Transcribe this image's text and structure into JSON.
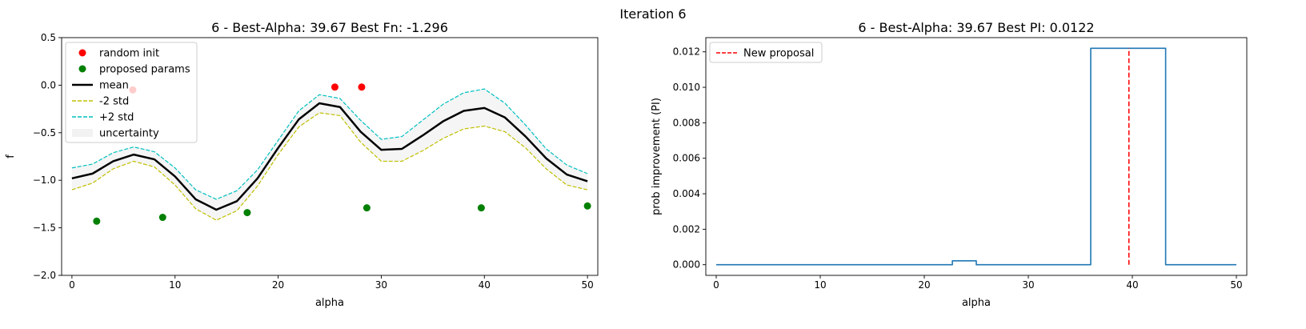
{
  "suptitle": "Iteration 6",
  "chart_data": [
    {
      "type": "line",
      "title": "6 - Best-Alpha: 39.67 Best Fn: -1.296",
      "xlabel": "alpha",
      "ylabel": "f",
      "xlim": [
        -1,
        51
      ],
      "ylim": [
        -2.0,
        0.5
      ],
      "xticks": [
        0,
        10,
        20,
        30,
        40,
        50
      ],
      "yticks": [
        -2.0,
        -1.5,
        -1.0,
        -0.5,
        0.0,
        0.5
      ],
      "ytick_labels": [
        "−2.0",
        "−1.5",
        "−1.0",
        "−0.5",
        "0.0",
        "0.5"
      ],
      "grid": false,
      "legend_position": "upper-left",
      "legend": [
        {
          "label": "random init",
          "kind": "marker",
          "color": "#ff0000"
        },
        {
          "label": "proposed params",
          "kind": "marker",
          "color": "#008000"
        },
        {
          "label": "mean",
          "kind": "line",
          "color": "#000000"
        },
        {
          "label": "-2 std",
          "kind": "dashed",
          "color": "#bfbf00"
        },
        {
          "label": "+2 std",
          "kind": "dashed",
          "color": "#00bfbf"
        },
        {
          "label": "uncertainty",
          "kind": "patch",
          "color": "#f2f2f2"
        }
      ],
      "series": [
        {
          "name": "mean",
          "color": "#000000",
          "x": [
            0,
            2,
            4,
            6,
            8,
            10,
            12,
            14,
            16,
            18,
            20,
            22,
            24,
            26,
            28,
            30,
            32,
            34,
            36,
            38,
            40,
            42,
            44,
            46,
            48,
            50
          ],
          "y": [
            -0.98,
            -0.93,
            -0.8,
            -0.73,
            -0.78,
            -0.96,
            -1.2,
            -1.31,
            -1.22,
            -0.98,
            -0.66,
            -0.36,
            -0.19,
            -0.23,
            -0.49,
            -0.68,
            -0.67,
            -0.53,
            -0.38,
            -0.27,
            -0.24,
            -0.34,
            -0.54,
            -0.77,
            -0.94,
            -1.01
          ]
        },
        {
          "name": "-2 std",
          "color": "#bfbf00",
          "x": [
            0,
            2,
            4,
            6,
            8,
            10,
            12,
            14,
            16,
            18,
            20,
            22,
            24,
            26,
            28,
            30,
            32,
            34,
            36,
            38,
            40,
            42,
            44,
            46,
            48,
            50
          ],
          "y": [
            -1.1,
            -1.03,
            -0.88,
            -0.8,
            -0.86,
            -1.05,
            -1.3,
            -1.42,
            -1.32,
            -1.06,
            -0.73,
            -0.44,
            -0.29,
            -0.32,
            -0.6,
            -0.8,
            -0.8,
            -0.69,
            -0.56,
            -0.46,
            -0.43,
            -0.49,
            -0.66,
            -0.88,
            -1.05,
            -1.1
          ]
        },
        {
          "name": "+2 std",
          "color": "#00bfbf",
          "x": [
            0,
            2,
            4,
            6,
            8,
            10,
            12,
            14,
            16,
            18,
            20,
            22,
            24,
            26,
            28,
            30,
            32,
            34,
            36,
            38,
            40,
            42,
            44,
            46,
            48,
            50
          ],
          "y": [
            -0.87,
            -0.83,
            -0.71,
            -0.65,
            -0.7,
            -0.87,
            -1.1,
            -1.2,
            -1.11,
            -0.89,
            -0.58,
            -0.27,
            -0.1,
            -0.14,
            -0.37,
            -0.57,
            -0.54,
            -0.37,
            -0.2,
            -0.08,
            -0.04,
            -0.19,
            -0.42,
            -0.67,
            -0.84,
            -0.93
          ]
        }
      ],
      "scatter": [
        {
          "name": "random init",
          "color": "#ff0000",
          "points": [
            [
              5.9,
              -0.05
            ],
            [
              25.5,
              -0.02
            ],
            [
              28.1,
              -0.02
            ]
          ]
        },
        {
          "name": "proposed params",
          "color": "#008000",
          "points": [
            [
              2.4,
              -1.43
            ],
            [
              8.8,
              -1.39
            ],
            [
              17.0,
              -1.34
            ],
            [
              28.6,
              -1.29
            ],
            [
              39.7,
              -1.29
            ],
            [
              50.0,
              -1.27
            ]
          ]
        }
      ]
    },
    {
      "type": "line",
      "title": "6 - Best-Alpha: 39.67 Best PI: 0.0122",
      "xlabel": "alpha",
      "ylabel": "prob improvement (PI)",
      "xlim": [
        -1,
        51
      ],
      "ylim": [
        -0.0006,
        0.0128
      ],
      "xticks": [
        0,
        10,
        20,
        30,
        40,
        50
      ],
      "yticks": [
        0.0,
        0.002,
        0.004,
        0.006,
        0.008,
        0.01,
        0.012
      ],
      "ytick_labels": [
        "0.000",
        "0.002",
        "0.004",
        "0.006",
        "0.008",
        "0.010",
        "0.012"
      ],
      "grid": false,
      "legend_position": "upper-left",
      "legend": [
        {
          "label": "New proposal",
          "kind": "dashed",
          "color": "#ff0000"
        }
      ],
      "series": [
        {
          "name": "PI",
          "color": "#1f77b4",
          "x": [
            0,
            22.7,
            22.7,
            25.0,
            25.0,
            36.0,
            36.0,
            43.2,
            43.2,
            50.0
          ],
          "y": [
            0,
            0,
            0.00022,
            0.00022,
            0,
            0,
            0.0122,
            0.0122,
            0,
            0
          ]
        }
      ],
      "vline": {
        "x": 39.67,
        "y": [
          0,
          0.0122
        ],
        "color": "#ff0000",
        "label": "New proposal"
      }
    }
  ]
}
